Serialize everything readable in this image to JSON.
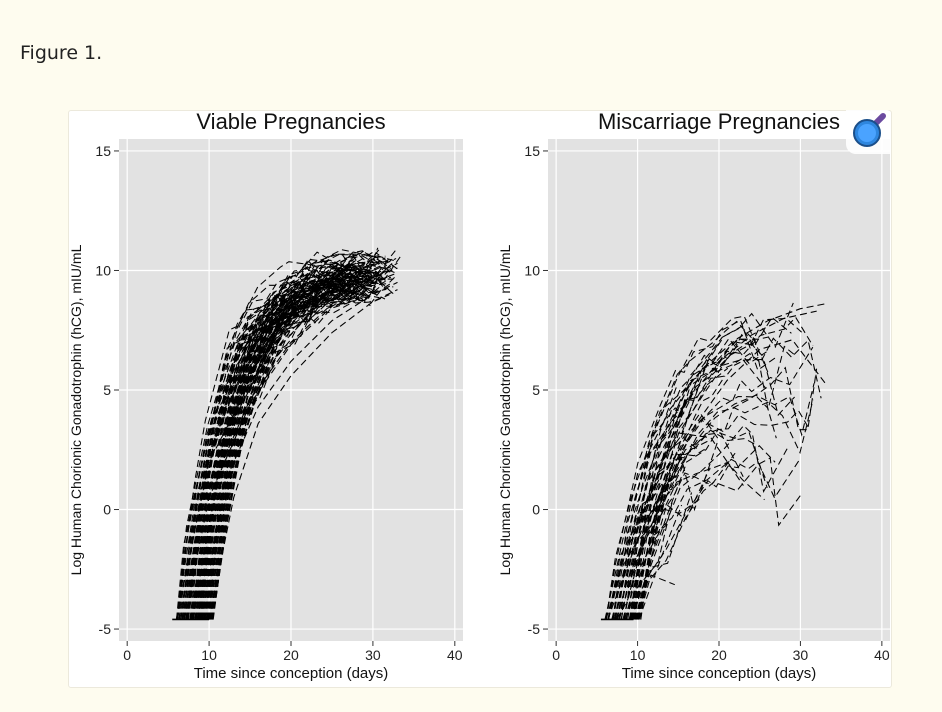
{
  "caption": "Figure 1.",
  "zoom_icon": "magnifier-icon",
  "colors": {
    "page_bg": "#fefcef",
    "plot_bg": "#e2e2e2",
    "grid": "#ffffff",
    "line": "#000000",
    "zoom_icon": "#2e86de",
    "zoom_icon_handle": "#6b4aa0"
  },
  "chart_data": [
    {
      "type": "line",
      "title": "Viable Pregnancies",
      "xlabel": "Time since conception (days)",
      "ylabel": "Log Human Chorionic Gonadotrophin (hCG), mIU/mL",
      "xlim": [
        -1,
        41
      ],
      "ylim": [
        -5.5,
        15.5
      ],
      "xticks": [
        0,
        10,
        20,
        30,
        40
      ],
      "yticks": [
        -5,
        0,
        5,
        10,
        15
      ],
      "grid": true,
      "line_style": "dashed",
      "series_count": 120,
      "baseline": -4.6,
      "series": [
        {
          "x": [
            6,
            10,
            15,
            20,
            25,
            30,
            33
          ],
          "y": [
            -4.6,
            2.0,
            5.3,
            7.5,
            8.9,
            9.8,
            10.3
          ]
        },
        {
          "x": [
            7,
            10,
            15,
            20,
            25,
            30,
            33
          ],
          "y": [
            -4.6,
            0.5,
            4.4,
            6.9,
            8.5,
            9.5,
            9.9
          ]
        },
        {
          "x": [
            8,
            11,
            15,
            20,
            25,
            30,
            33
          ],
          "y": [
            -4.6,
            1.5,
            4.6,
            7.0,
            8.6,
            9.7,
            10.1
          ]
        },
        {
          "x": [
            9,
            12,
            16,
            20,
            25,
            30,
            33
          ],
          "y": [
            -4.6,
            1.2,
            4.3,
            6.2,
            7.9,
            9.0,
            9.5
          ]
        },
        {
          "x": [
            10,
            13,
            16,
            20,
            25,
            30,
            33
          ],
          "y": [
            -4.6,
            0.5,
            3.6,
            5.6,
            7.4,
            8.7,
            9.2
          ]
        }
      ]
    },
    {
      "type": "line",
      "title": "Miscarriage Pregnancies",
      "xlabel": "Time since conception (days)",
      "ylabel": "Log Human Chorionic Gonadotrophin (hCG), mIU/mL",
      "xlim": [
        -1,
        41
      ],
      "ylim": [
        -5.5,
        15.5
      ],
      "xticks": [
        0,
        10,
        20,
        30,
        40
      ],
      "yticks": [
        -5,
        0,
        5,
        10,
        15
      ],
      "grid": true,
      "line_style": "dashed",
      "series_count": 60,
      "baseline": -4.6,
      "series": [
        {
          "x": [
            6,
            10,
            14,
            18,
            22,
            26,
            30,
            33
          ],
          "y": [
            -4.6,
            1.5,
            4.2,
            5.9,
            7.1,
            7.9,
            8.4,
            8.6
          ]
        },
        {
          "x": [
            8,
            11,
            15,
            19,
            23
          ],
          "y": [
            -4.6,
            1.0,
            3.2,
            3.0,
            1.0
          ]
        },
        {
          "x": [
            9,
            12,
            16,
            20,
            24,
            28,
            32
          ],
          "y": [
            -4.6,
            1.8,
            4.5,
            6.2,
            7.3,
            8.0,
            8.3
          ]
        },
        {
          "x": [
            10,
            13,
            17,
            21,
            25,
            29,
            33
          ],
          "y": [
            -4.6,
            0.5,
            3.5,
            5.4,
            6.7,
            7.1,
            5.3
          ]
        }
      ]
    }
  ]
}
